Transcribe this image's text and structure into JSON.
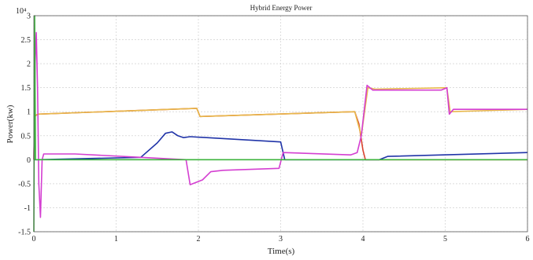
{
  "chart_data": {
    "type": "line",
    "title": "Hybrid Energy Power",
    "xlabel": "Time(s)",
    "ylabel": "Power(kw)",
    "y_exponent_label": "10⁴",
    "xlim": [
      0,
      6
    ],
    "ylim": [
      -1.5,
      3
    ],
    "xticks": [
      "0",
      "1",
      "2",
      "3",
      "4",
      "5",
      "6"
    ],
    "yticks": [
      "-1.5",
      "-1",
      "-0.5",
      "0",
      "0.5",
      "1",
      "1.5",
      "2",
      "2.5",
      "3"
    ],
    "grid": true,
    "series": [
      {
        "color": "#d9432f",
        "points": [
          [
            0,
            0
          ],
          [
            0.01,
            0.9
          ],
          [
            0.03,
            0.93
          ],
          [
            0.05,
            0.95
          ],
          [
            1.98,
            1.07
          ],
          [
            2.02,
            0.9
          ],
          [
            3.9,
            1.0
          ],
          [
            3.95,
            0.75
          ],
          [
            4.0,
            0.2
          ],
          [
            4.03,
            0.0
          ],
          [
            6.0,
            0.0
          ]
        ]
      },
      {
        "color": "#e8b84a",
        "points": [
          [
            0,
            0
          ],
          [
            0.01,
            0.92
          ],
          [
            0.05,
            0.95
          ],
          [
            1.98,
            1.07
          ],
          [
            2.02,
            0.9
          ],
          [
            3.9,
            1.0
          ],
          [
            3.98,
            0.5
          ],
          [
            4.06,
            1.5
          ],
          [
            4.15,
            1.47
          ],
          [
            5.02,
            1.5
          ],
          [
            5.06,
            1.0
          ],
          [
            6.0,
            1.05
          ]
        ]
      },
      {
        "color": "#2034a8",
        "points": [
          [
            0,
            0
          ],
          [
            0.05,
            0.0
          ],
          [
            1.3,
            0.05
          ],
          [
            1.5,
            0.35
          ],
          [
            1.6,
            0.55
          ],
          [
            1.68,
            0.58
          ],
          [
            1.75,
            0.5
          ],
          [
            1.82,
            0.46
          ],
          [
            1.9,
            0.48
          ],
          [
            3.0,
            0.37
          ],
          [
            3.05,
            0.0
          ],
          [
            4.2,
            0.0
          ],
          [
            4.3,
            0.07
          ],
          [
            6.0,
            0.15
          ]
        ]
      },
      {
        "color": "#d43fd1",
        "points": [
          [
            0,
            0
          ],
          [
            0.015,
            2.0
          ],
          [
            0.03,
            2.65
          ],
          [
            0.045,
            1.5
          ],
          [
            0.06,
            -0.5
          ],
          [
            0.08,
            -1.2
          ],
          [
            0.1,
            0.0
          ],
          [
            0.12,
            0.12
          ],
          [
            0.5,
            0.12
          ],
          [
            1.3,
            0.05
          ],
          [
            1.85,
            0.0
          ],
          [
            1.9,
            -0.52
          ],
          [
            2.05,
            -0.42
          ],
          [
            2.15,
            -0.25
          ],
          [
            2.3,
            -0.22
          ],
          [
            2.98,
            -0.18
          ],
          [
            3.03,
            0.15
          ],
          [
            3.85,
            0.1
          ],
          [
            3.93,
            0.15
          ],
          [
            3.98,
            0.5
          ],
          [
            4.05,
            1.55
          ],
          [
            4.12,
            1.45
          ],
          [
            4.95,
            1.45
          ],
          [
            5.02,
            1.5
          ],
          [
            5.05,
            0.95
          ],
          [
            5.1,
            1.05
          ],
          [
            6.0,
            1.05
          ]
        ]
      },
      {
        "color": "#3db43d",
        "points": [
          [
            0,
            -1.5
          ],
          [
            0.01,
            3.0
          ],
          [
            0.02,
            0.0
          ],
          [
            6.0,
            0.0
          ]
        ]
      }
    ]
  }
}
